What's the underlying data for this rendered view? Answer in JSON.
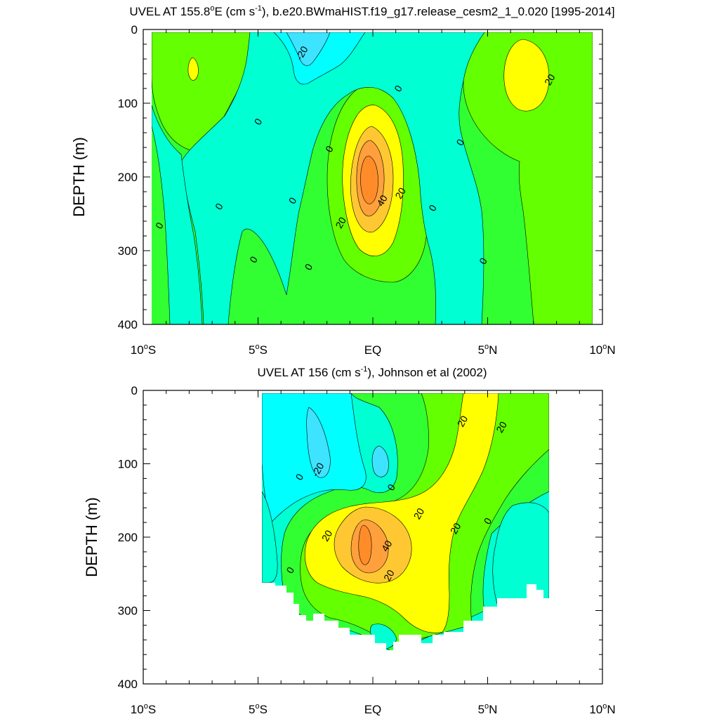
{
  "chart_data": [
    {
      "type": "contour",
      "title_main": "UVEL AT 155.8",
      "title_sup_o": "o",
      "title_mid": "E (cm s",
      "title_sup_unit": "-1",
      "title_end": "), b.e20.BWmaHIST.f19_g17.release_cesm2_1_0.020 [1995-2014]",
      "ylabel": "DEPTH (m)",
      "xlabel": "",
      "xlim": [
        -10,
        10
      ],
      "ylim": [
        0,
        400
      ],
      "y_inverted": true,
      "x_ticks": [
        {
          "value": -10,
          "num": "10",
          "deg": "o",
          "hemi": "S"
        },
        {
          "value": -5,
          "num": "5",
          "deg": "o",
          "hemi": "S"
        },
        {
          "value": 0,
          "num": "EQ",
          "deg": "",
          "hemi": ""
        },
        {
          "value": 5,
          "num": "5",
          "deg": "o",
          "hemi": "N"
        },
        {
          "value": 10,
          "num": "10",
          "deg": "o",
          "hemi": "N"
        }
      ],
      "y_ticks": [
        0,
        100,
        200,
        300,
        400
      ],
      "data_extent": {
        "lat": [
          -9.6,
          9.9
        ],
        "depth": [
          5,
          400
        ]
      },
      "levels": [
        -20,
        -10,
        0,
        10,
        20,
        30,
        40,
        50
      ],
      "contour_labels": [
        {
          "text": "-20",
          "lat": -3.1,
          "depth": 32
        },
        {
          "text": "0",
          "lat": 1.1,
          "depth": 80
        },
        {
          "text": "20",
          "lat": 7.7,
          "depth": 68
        },
        {
          "text": "0",
          "lat": -5.0,
          "depth": 125
        },
        {
          "text": "0",
          "lat": -1.9,
          "depth": 162
        },
        {
          "text": "0",
          "lat": 3.8,
          "depth": 153
        },
        {
          "text": "20",
          "lat": 1.2,
          "depth": 222
        },
        {
          "text": "40",
          "lat": 0.4,
          "depth": 232
        },
        {
          "text": "20",
          "lat": -1.4,
          "depth": 262
        },
        {
          "text": "0",
          "lat": -6.7,
          "depth": 240
        },
        {
          "text": "0",
          "lat": -3.5,
          "depth": 232
        },
        {
          "text": "0",
          "lat": 2.6,
          "depth": 242
        },
        {
          "text": "0",
          "lat": -9.3,
          "depth": 266
        },
        {
          "text": "0",
          "lat": -5.2,
          "depth": 312
        },
        {
          "text": "0",
          "lat": -2.8,
          "depth": 322
        },
        {
          "text": "0",
          "lat": 4.8,
          "depth": 314
        }
      ]
    },
    {
      "type": "contour",
      "title_main": "UVEL AT 156 (cm s",
      "title_sup_unit": "-1",
      "title_end": "), Johnson et al (2002)",
      "ylabel": "DEPTH (m)",
      "xlabel": "",
      "xlim": [
        -10,
        10
      ],
      "ylim": [
        0,
        400
      ],
      "y_inverted": true,
      "x_ticks": [
        {
          "value": -10,
          "num": "10",
          "deg": "o",
          "hemi": "S"
        },
        {
          "value": -5,
          "num": "5",
          "deg": "o",
          "hemi": "S"
        },
        {
          "value": 0,
          "num": "EQ",
          "deg": "",
          "hemi": ""
        },
        {
          "value": 5,
          "num": "5",
          "deg": "o",
          "hemi": "N"
        },
        {
          "value": 10,
          "num": "10",
          "deg": "o",
          "hemi": "N"
        }
      ],
      "y_ticks": [
        0,
        100,
        200,
        300,
        400
      ],
      "data_extent": {
        "lat": [
          -5.0,
          8.0
        ],
        "depth": [
          5,
          355
        ]
      },
      "levels": [
        -20,
        -10,
        0,
        10,
        20,
        30,
        40,
        50
      ],
      "contour_labels": [
        {
          "text": "20",
          "lat": 3.9,
          "depth": 42
        },
        {
          "text": "20",
          "lat": 5.6,
          "depth": 50
        },
        {
          "text": "-20",
          "lat": -2.4,
          "depth": 108
        },
        {
          "text": "0",
          "lat": -3.2,
          "depth": 118
        },
        {
          "text": "0",
          "lat": 0.8,
          "depth": 132
        },
        {
          "text": "20",
          "lat": 2.0,
          "depth": 168
        },
        {
          "text": "20",
          "lat": -2.0,
          "depth": 198
        },
        {
          "text": "20",
          "lat": 3.6,
          "depth": 188
        },
        {
          "text": "0",
          "lat": 5.0,
          "depth": 178
        },
        {
          "text": "40",
          "lat": 0.6,
          "depth": 212
        },
        {
          "text": "20",
          "lat": 0.7,
          "depth": 252
        },
        {
          "text": "0",
          "lat": -3.6,
          "depth": 245
        }
      ]
    }
  ],
  "colors": {
    "lt_neg20": "#3ee3ff",
    "neg20_neg10": "#00ffff",
    "neg10_0": "#00ffd2",
    "0_10": "#32ff32",
    "10_20": "#64ff00",
    "20_30": "#ffff00",
    "30_40": "#ffc832",
    "40_50": "#ffa03c",
    "gt_50": "#ff8c28",
    "contour_line": "#000000",
    "axis": "#000000",
    "background": "#ffffff"
  }
}
